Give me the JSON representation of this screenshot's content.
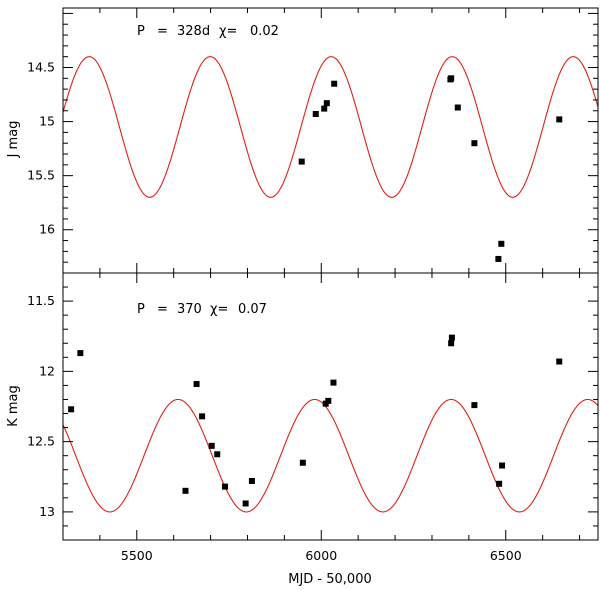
{
  "chart_data": {
    "type": "scatter",
    "xlabel": "MJD - 50,000",
    "xlim": [
      5300,
      6750
    ],
    "xticks": [
      5500,
      6000,
      6500
    ],
    "xtick_labels": [
      "5500",
      "6000",
      "6500"
    ],
    "panels": [
      {
        "id": "J",
        "ylabel": "J mag",
        "ylim": [
          16.4,
          13.95
        ],
        "yticks": [
          14.5,
          15,
          15.5,
          16
        ],
        "ytick_labels": [
          "14.5",
          "15",
          "15.5",
          "16"
        ],
        "annotation": {
          "period_label": "P",
          "eq": "=",
          "period": "328d",
          "chi_label": "χ=",
          "chi": "0.02"
        },
        "fit": {
          "period": 328,
          "mean": 15.05,
          "amplitude": 0.65,
          "t_max": 6355
        },
        "points": [
          {
            "x": 5947,
            "y": 15.37
          },
          {
            "x": 5985,
            "y": 14.93
          },
          {
            "x": 6008,
            "y": 14.88
          },
          {
            "x": 6015,
            "y": 14.83
          },
          {
            "x": 6035,
            "y": 14.65
          },
          {
            "x": 6350,
            "y": 14.61
          },
          {
            "x": 6352,
            "y": 14.6
          },
          {
            "x": 6370,
            "y": 14.87
          },
          {
            "x": 6415,
            "y": 15.2
          },
          {
            "x": 6480,
            "y": 16.27
          },
          {
            "x": 6488,
            "y": 16.13
          },
          {
            "x": 6645,
            "y": 14.98
          }
        ]
      },
      {
        "id": "K",
        "ylabel": "K mag",
        "ylim": [
          13.2,
          11.3
        ],
        "yticks": [
          11.5,
          12,
          12.5,
          13
        ],
        "ytick_labels": [
          "11.5",
          "12",
          "12.5",
          "13"
        ],
        "annotation": {
          "period_label": "P",
          "eq": "=",
          "period": "370",
          "chi_label": "χ=",
          "chi": "0.07"
        },
        "fit": {
          "period": 370,
          "mean": 12.6,
          "amplitude": 0.4,
          "t_max": 6352
        },
        "points": [
          {
            "x": 5322,
            "y": 12.27
          },
          {
            "x": 5347,
            "y": 11.87
          },
          {
            "x": 5632,
            "y": 12.85
          },
          {
            "x": 5662,
            "y": 12.09
          },
          {
            "x": 5677,
            "y": 12.32
          },
          {
            "x": 5703,
            "y": 12.53
          },
          {
            "x": 5718,
            "y": 12.59
          },
          {
            "x": 5739,
            "y": 12.82
          },
          {
            "x": 5795,
            "y": 12.94
          },
          {
            "x": 5812,
            "y": 12.78
          },
          {
            "x": 5950,
            "y": 12.65
          },
          {
            "x": 6012,
            "y": 12.23
          },
          {
            "x": 6019,
            "y": 12.21
          },
          {
            "x": 6033,
            "y": 12.08
          },
          {
            "x": 6352,
            "y": 11.8
          },
          {
            "x": 6354,
            "y": 11.76
          },
          {
            "x": 6415,
            "y": 12.24
          },
          {
            "x": 6482,
            "y": 12.8
          },
          {
            "x": 6490,
            "y": 12.67
          },
          {
            "x": 6645,
            "y": 11.93
          }
        ]
      }
    ]
  }
}
